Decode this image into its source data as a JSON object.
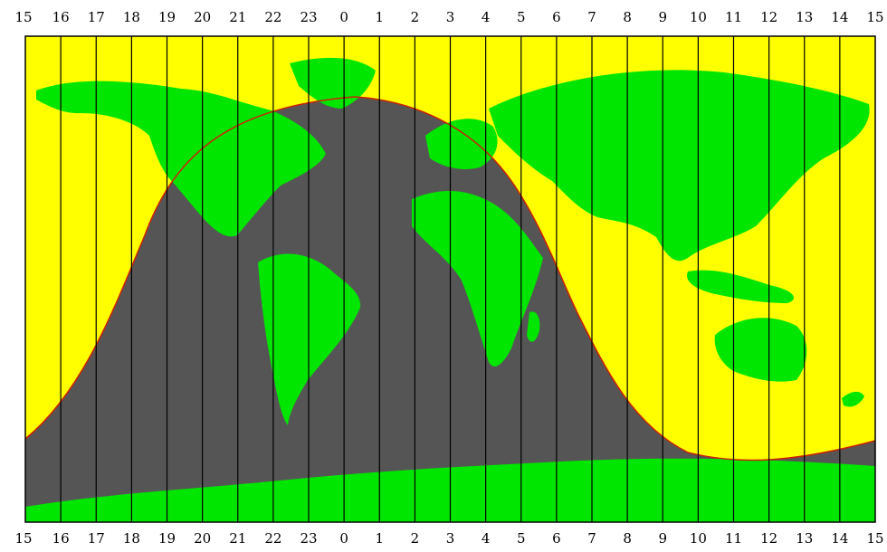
{
  "map": {
    "hour_labels": [
      "15",
      "16",
      "17",
      "18",
      "19",
      "20",
      "21",
      "22",
      "23",
      "0",
      "1",
      "2",
      "3",
      "4",
      "5",
      "6",
      "7",
      "8",
      "9",
      "10",
      "11",
      "12",
      "13",
      "14",
      "15"
    ],
    "colors": {
      "day": "#ffff00",
      "night": "#555555",
      "land": "#00e600",
      "terminator": "#cc2200",
      "grid_line": "#000000",
      "frame": "#000000"
    },
    "icons": {
      "night_region": "night-shade",
      "terminator": "terminator-curve"
    }
  }
}
